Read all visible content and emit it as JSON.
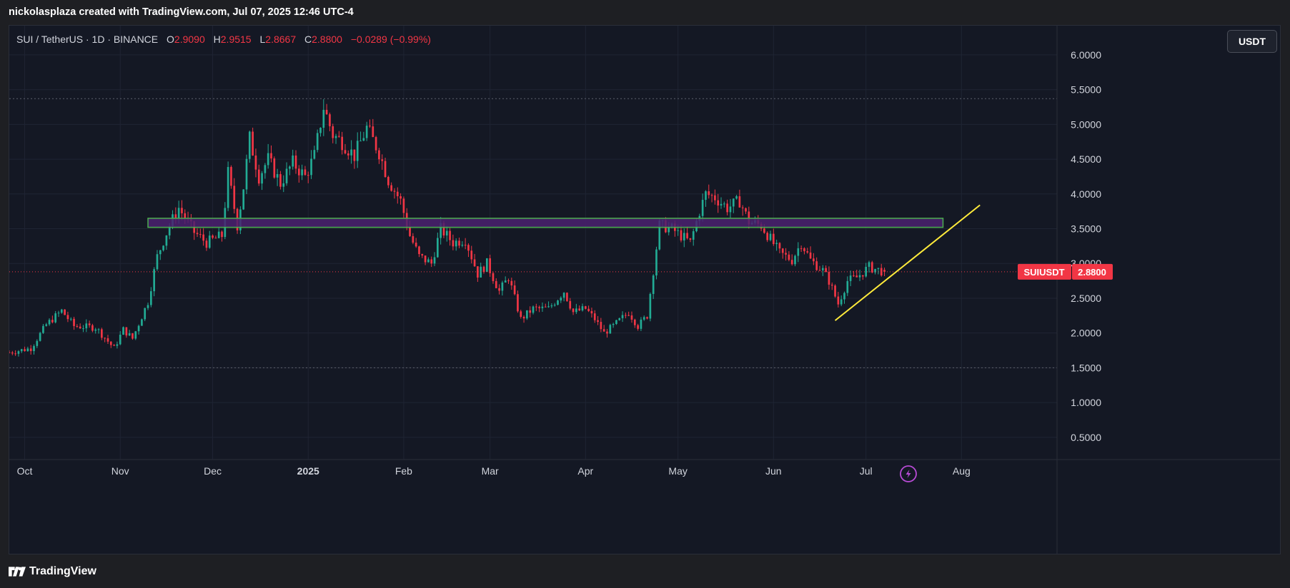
{
  "header": {
    "attribution": "nickolasplaza created with TradingView.com, Jul 07, 2025 12:46 UTC-4"
  },
  "legend": {
    "symbol": "SUI / TetherUS · 1D · BINANCE",
    "o_label": "O",
    "o_value": "2.9090",
    "h_label": "H",
    "h_value": "2.9515",
    "l_label": "L",
    "l_value": "2.8667",
    "c_label": "C",
    "c_value": "2.8800",
    "change": "−0.0289 (−0.99%)"
  },
  "currency_button": "USDT",
  "price_tag": {
    "symbol": "SUIUSDT",
    "value": "2.8800"
  },
  "footer": {
    "brand": "TradingView"
  },
  "colors": {
    "up": "#22ab94",
    "down": "#f23645",
    "zone_fill": "#4a2170",
    "zone_border": "#4caf50",
    "trendline": "#ffeb3b",
    "price_line": "#f23645",
    "grid": "#1f2433",
    "background": "#141824"
  },
  "chart_data": {
    "type": "candlestick",
    "symbol": "SUIUSDT",
    "timeframe": "1D",
    "y_ticks": [
      "6.0000",
      "5.5000",
      "5.0000",
      "4.5000",
      "4.0000",
      "3.5000",
      "3.0000",
      "2.5000",
      "2.0000",
      "1.5000",
      "1.0000",
      "0.5000"
    ],
    "x_ticks": [
      {
        "label": "Oct",
        "date": "2024-10-01",
        "bold": false
      },
      {
        "label": "Nov",
        "date": "2024-11-01",
        "bold": false
      },
      {
        "label": "Dec",
        "date": "2024-12-01",
        "bold": false
      },
      {
        "label": "2025",
        "date": "2025-01-01",
        "bold": true
      },
      {
        "label": "Feb",
        "date": "2025-02-01",
        "bold": false
      },
      {
        "label": "Mar",
        "date": "2025-03-01",
        "bold": false
      },
      {
        "label": "Apr",
        "date": "2025-04-01",
        "bold": false
      },
      {
        "label": "May",
        "date": "2025-05-01",
        "bold": false
      },
      {
        "label": "Jun",
        "date": "2025-06-01",
        "bold": false
      },
      {
        "label": "Jul",
        "date": "2025-07-01",
        "bold": false
      },
      {
        "label": "Aug",
        "date": "2025-08-01",
        "bold": false
      }
    ],
    "x_range": [
      "2024-09-26",
      "2025-09-01"
    ],
    "y_range": [
      0.18,
      6.42
    ],
    "current_price": 2.88,
    "dotted_levels": [
      5.37,
      1.5
    ],
    "support_zone": {
      "x_start": "2024-11-10",
      "x_end": "2025-07-26",
      "y_low": 3.52,
      "y_high": 3.65
    },
    "trendline": {
      "x1": "2025-06-21",
      "y1": 2.18,
      "x2": "2025-08-07",
      "y2": 3.84
    },
    "close_path": [
      [
        "2024-09-26",
        1.72
      ],
      [
        "2024-10-03",
        1.78
      ],
      [
        "2024-10-08",
        2.12
      ],
      [
        "2024-10-13",
        2.32
      ],
      [
        "2024-10-17",
        2.1
      ],
      [
        "2024-10-24",
        2.08
      ],
      [
        "2024-10-30",
        1.78
      ],
      [
        "2024-11-02",
        2.05
      ],
      [
        "2024-11-05",
        1.92
      ],
      [
        "2024-11-10",
        2.45
      ],
      [
        "2024-11-13",
        3.1
      ],
      [
        "2024-11-17",
        3.55
      ],
      [
        "2024-11-20",
        3.8
      ],
      [
        "2024-11-25",
        3.45
      ],
      [
        "2024-11-29",
        3.3
      ],
      [
        "2024-12-04",
        3.4
      ],
      [
        "2024-12-06",
        4.3
      ],
      [
        "2024-12-09",
        3.55
      ],
      [
        "2024-12-11",
        4.1
      ],
      [
        "2024-12-13",
        4.8
      ],
      [
        "2024-12-16",
        4.25
      ],
      [
        "2024-12-19",
        4.5
      ],
      [
        "2024-12-23",
        4.15
      ],
      [
        "2024-12-27",
        4.45
      ],
      [
        "2024-12-31",
        4.25
      ],
      [
        "2025-01-03",
        4.55
      ],
      [
        "2025-01-06",
        5.25
      ],
      [
        "2025-01-09",
        4.85
      ],
      [
        "2025-01-12",
        4.75
      ],
      [
        "2025-01-16",
        4.55
      ],
      [
        "2025-01-20",
        4.95
      ],
      [
        "2025-01-24",
        4.6
      ],
      [
        "2025-01-27",
        4.2
      ],
      [
        "2025-01-31",
        3.9
      ],
      [
        "2025-02-03",
        3.4
      ],
      [
        "2025-02-06",
        3.1
      ],
      [
        "2025-02-10",
        3.0
      ],
      [
        "2025-02-13",
        3.5
      ],
      [
        "2025-02-17",
        3.3
      ],
      [
        "2025-02-21",
        3.35
      ],
      [
        "2025-02-25",
        2.85
      ],
      [
        "2025-02-28",
        3.0
      ],
      [
        "2025-03-04",
        2.6
      ],
      [
        "2025-03-07",
        2.8
      ],
      [
        "2025-03-11",
        2.2
      ],
      [
        "2025-03-15",
        2.35
      ],
      [
        "2025-03-20",
        2.35
      ],
      [
        "2025-03-25",
        2.6
      ],
      [
        "2025-03-28",
        2.3
      ],
      [
        "2025-04-01",
        2.35
      ],
      [
        "2025-04-04",
        2.2
      ],
      [
        "2025-04-07",
        2.0
      ],
      [
        "2025-04-10",
        2.1
      ],
      [
        "2025-04-15",
        2.3
      ],
      [
        "2025-04-18",
        2.1
      ],
      [
        "2025-04-21",
        2.25
      ],
      [
        "2025-04-23",
        2.9
      ],
      [
        "2025-04-25",
        3.55
      ],
      [
        "2025-04-29",
        3.5
      ],
      [
        "2025-05-02",
        3.4
      ],
      [
        "2025-05-05",
        3.3
      ],
      [
        "2025-05-08",
        3.75
      ],
      [
        "2025-05-10",
        4.0
      ],
      [
        "2025-05-13",
        3.95
      ],
      [
        "2025-05-17",
        3.8
      ],
      [
        "2025-05-21",
        3.9
      ],
      [
        "2025-05-24",
        3.6
      ],
      [
        "2025-05-28",
        3.55
      ],
      [
        "2025-05-31",
        3.35
      ],
      [
        "2025-06-03",
        3.15
      ],
      [
        "2025-06-07",
        3.05
      ],
      [
        "2025-06-10",
        3.3
      ],
      [
        "2025-06-13",
        3.05
      ],
      [
        "2025-06-17",
        2.9
      ],
      [
        "2025-06-19",
        2.75
      ],
      [
        "2025-06-22",
        2.42
      ],
      [
        "2025-06-25",
        2.75
      ],
      [
        "2025-06-28",
        2.8
      ],
      [
        "2025-07-02",
        2.95
      ],
      [
        "2025-07-04",
        2.92
      ],
      [
        "2025-07-07",
        2.88
      ]
    ]
  }
}
